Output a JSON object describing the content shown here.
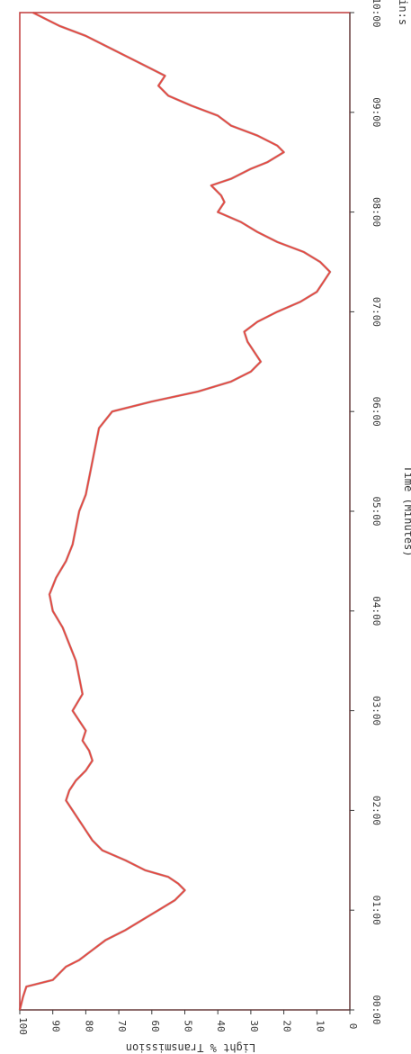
{
  "chart_data": {
    "type": "line",
    "xlabel": "Time (Minutes)",
    "xunit": "min:s",
    "ylabel": "Light % Transmission",
    "xlim": [
      0,
      600
    ],
    "ylim": [
      0,
      100
    ],
    "x_ticks": [
      "00:00",
      "01:00",
      "02:00",
      "03:00",
      "04:00",
      "05:00",
      "06:00",
      "07:00",
      "08:00",
      "09:00",
      "10:00"
    ],
    "y_ticks": [
      "100",
      "90",
      "80",
      "70",
      "60",
      "50",
      "40",
      "30",
      "20",
      "10",
      "0"
    ],
    "grid": false,
    "colors": {
      "line": "#e8473f",
      "line_dark": "#8a4a4a",
      "frame": "#c03a3a",
      "axis": "#3a3a3a"
    },
    "series": [
      {
        "x": [
          0,
          8,
          14,
          18,
          22,
          26,
          30,
          36,
          42,
          48,
          54,
          60,
          66,
          72,
          76,
          80,
          84,
          90,
          96,
          102,
          108,
          114,
          120,
          126,
          132,
          138,
          144,
          150,
          156,
          162,
          168,
          174,
          180,
          190,
          200,
          210,
          220,
          230,
          240,
          250,
          260,
          270,
          280,
          290,
          300,
          310,
          320,
          330,
          340,
          350,
          360,
          366,
          372,
          378,
          384,
          390,
          396,
          402,
          408,
          414,
          420,
          426,
          432,
          438,
          444,
          450,
          456,
          462,
          468,
          474,
          480,
          486,
          490,
          496,
          500,
          506,
          510,
          516,
          520,
          526,
          532,
          538,
          544,
          550,
          556,
          562,
          568,
          574,
          580,
          586,
          592,
          600
        ],
        "y": [
          100,
          99,
          98,
          90,
          88,
          86,
          82,
          78,
          74,
          68,
          63,
          58,
          53,
          50,
          52,
          55,
          62,
          68,
          75,
          78,
          80,
          82,
          84,
          86,
          85,
          83,
          80,
          78,
          79,
          81,
          80,
          82,
          84,
          81,
          82,
          83,
          85,
          87,
          90,
          91,
          89,
          86,
          84,
          83,
          82,
          80,
          79,
          78,
          77,
          76,
          72,
          60,
          46,
          36,
          30,
          27,
          29,
          31,
          32,
          28,
          22,
          15,
          10,
          8,
          6,
          9,
          14,
          22,
          28,
          33,
          40,
          38,
          39,
          42,
          36,
          30,
          25,
          20,
          22,
          28,
          36,
          40,
          48,
          55,
          58,
          56,
          62,
          68,
          74,
          80,
          88,
          96
        ]
      }
    ]
  }
}
